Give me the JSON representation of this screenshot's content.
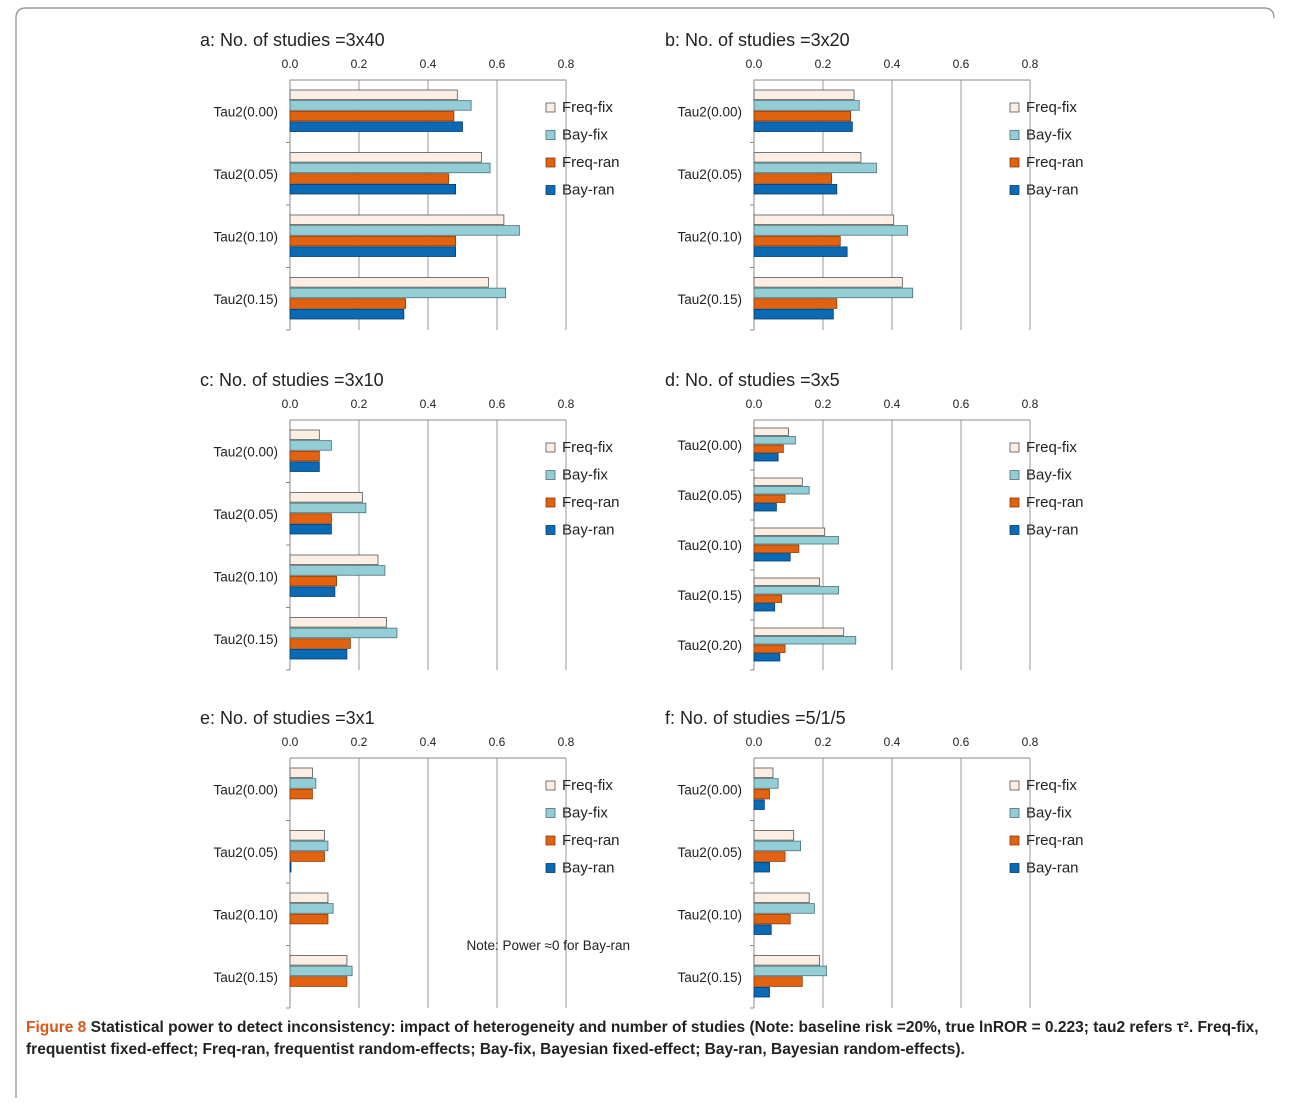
{
  "colors": {
    "frame": "#9a9a9a",
    "freq_fix": "#fdeee4",
    "bay_fix": "#93cdd6",
    "freq_ran": "#e2620f",
    "bay_ran": "#0a6ab6",
    "gridline": "#aaaaaa",
    "caption_label": "#d4591a"
  },
  "legend": [
    "Freq-fix",
    "Bay-fix",
    "Freq-ran",
    "Bay-ran"
  ],
  "caption": {
    "label": "Figure 8",
    "text": "Statistical power to detect inconsistency: impact of heterogeneity and number of studies (Note: baseline risk =20%, true lnROR = 0.223; tau2 refers τ². Freq-fix, frequentist fixed-effect; Freq-ran, frequentist random-effects; Bay-fix, Bayesian fixed-effect; Bay-ran, Bayesian random-effects)."
  },
  "chart_data": [
    {
      "type": "bar",
      "orientation": "horizontal",
      "title": "a: No. of studies =3x40",
      "xlim": [
        0,
        0.8
      ],
      "xticks": [
        "0.0",
        "0.2",
        "0.4",
        "0.6",
        "0.8"
      ],
      "categories": [
        "Tau2(0.00)",
        "Tau2(0.05)",
        "Tau2(0.10)",
        "Tau2(0.15)"
      ],
      "series": [
        {
          "name": "Freq-fix",
          "values": [
            0.485,
            0.555,
            0.62,
            0.575
          ]
        },
        {
          "name": "Bay-fix",
          "values": [
            0.525,
            0.58,
            0.665,
            0.625
          ]
        },
        {
          "name": "Freq-ran",
          "values": [
            0.475,
            0.46,
            0.48,
            0.335
          ]
        },
        {
          "name": "Bay-ran",
          "values": [
            0.5,
            0.48,
            0.48,
            0.33
          ]
        }
      ],
      "legend_position": "right",
      "note": ""
    },
    {
      "type": "bar",
      "orientation": "horizontal",
      "title": "b: No. of studies =3x20",
      "xlim": [
        0,
        0.8
      ],
      "xticks": [
        "0.0",
        "0.2",
        "0.4",
        "0.6",
        "0.8"
      ],
      "categories": [
        "Tau2(0.00)",
        "Tau2(0.05)",
        "Tau2(0.10)",
        "Tau2(0.15)"
      ],
      "series": [
        {
          "name": "Freq-fix",
          "values": [
            0.29,
            0.31,
            0.405,
            0.43
          ]
        },
        {
          "name": "Bay-fix",
          "values": [
            0.305,
            0.355,
            0.445,
            0.46
          ]
        },
        {
          "name": "Freq-ran",
          "values": [
            0.28,
            0.225,
            0.25,
            0.24
          ]
        },
        {
          "name": "Bay-ran",
          "values": [
            0.285,
            0.24,
            0.27,
            0.23
          ]
        }
      ],
      "legend_position": "right",
      "note": ""
    },
    {
      "type": "bar",
      "orientation": "horizontal",
      "title": "c: No. of studies =3x10",
      "xlim": [
        0,
        0.8
      ],
      "xticks": [
        "0.0",
        "0.2",
        "0.4",
        "0.6",
        "0.8"
      ],
      "categories": [
        "Tau2(0.00)",
        "Tau2(0.05)",
        "Tau2(0.10)",
        "Tau2(0.15)"
      ],
      "series": [
        {
          "name": "Freq-fix",
          "values": [
            0.085,
            0.21,
            0.255,
            0.28
          ]
        },
        {
          "name": "Bay-fix",
          "values": [
            0.12,
            0.22,
            0.275,
            0.31
          ]
        },
        {
          "name": "Freq-ran",
          "values": [
            0.085,
            0.12,
            0.135,
            0.175
          ]
        },
        {
          "name": "Bay-ran",
          "values": [
            0.085,
            0.12,
            0.13,
            0.165
          ]
        }
      ],
      "legend_position": "right",
      "note": ""
    },
    {
      "type": "bar",
      "orientation": "horizontal",
      "title": "d: No. of studies =3x5",
      "xlim": [
        0,
        0.8
      ],
      "xticks": [
        "0.0",
        "0.2",
        "0.4",
        "0.6",
        "0.8"
      ],
      "categories": [
        "Tau2(0.00)",
        "Tau2(0.05)",
        "Tau2(0.10)",
        "Tau2(0.15)",
        "Tau2(0.20)"
      ],
      "series": [
        {
          "name": "Freq-fix",
          "values": [
            0.1,
            0.14,
            0.205,
            0.19,
            0.26
          ]
        },
        {
          "name": "Bay-fix",
          "values": [
            0.12,
            0.16,
            0.245,
            0.245,
            0.295
          ]
        },
        {
          "name": "Freq-ran",
          "values": [
            0.085,
            0.09,
            0.13,
            0.08,
            0.09
          ]
        },
        {
          "name": "Bay-ran",
          "values": [
            0.07,
            0.065,
            0.105,
            0.06,
            0.075
          ]
        }
      ],
      "legend_position": "right",
      "note": ""
    },
    {
      "type": "bar",
      "orientation": "horizontal",
      "title": "e: No. of studies =3x1",
      "xlim": [
        0,
        0.8
      ],
      "xticks": [
        "0.0",
        "0.2",
        "0.4",
        "0.6",
        "0.8"
      ],
      "categories": [
        "Tau2(0.00)",
        "Tau2(0.05)",
        "Tau2(0.10)",
        "Tau2(0.15)"
      ],
      "series": [
        {
          "name": "Freq-fix",
          "values": [
            0.065,
            0.1,
            0.11,
            0.165
          ]
        },
        {
          "name": "Bay-fix",
          "values": [
            0.075,
            0.11,
            0.125,
            0.18
          ]
        },
        {
          "name": "Freq-ran",
          "values": [
            0.065,
            0.1,
            0.11,
            0.165
          ]
        },
        {
          "name": "Bay-ran",
          "values": [
            0.0,
            0.003,
            0.0,
            0.0
          ]
        }
      ],
      "legend_position": "right",
      "note": "Note: Power ≈0 for Bay-ran"
    },
    {
      "type": "bar",
      "orientation": "horizontal",
      "title": "f: No. of studies =5/1/5",
      "xlim": [
        0,
        0.8
      ],
      "xticks": [
        "0.0",
        "0.2",
        "0.4",
        "0.6",
        "0.8"
      ],
      "categories": [
        "Tau2(0.00)",
        "Tau2(0.05)",
        "Tau2(0.10)",
        "Tau2(0.15)"
      ],
      "series": [
        {
          "name": "Freq-fix",
          "values": [
            0.055,
            0.115,
            0.16,
            0.19
          ]
        },
        {
          "name": "Bay-fix",
          "values": [
            0.07,
            0.135,
            0.175,
            0.21
          ]
        },
        {
          "name": "Freq-ran",
          "values": [
            0.045,
            0.09,
            0.105,
            0.14
          ]
        },
        {
          "name": "Bay-ran",
          "values": [
            0.03,
            0.045,
            0.05,
            0.045
          ]
        }
      ],
      "legend_position": "right",
      "note": ""
    }
  ]
}
